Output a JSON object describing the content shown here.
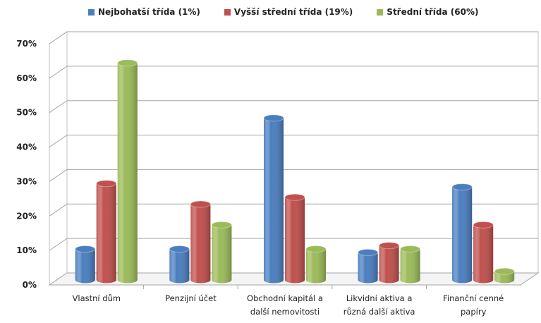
{
  "chart_data": {
    "type": "bar",
    "title": "",
    "xlabel": "",
    "ylabel": "",
    "ylim": [
      0,
      70
    ],
    "yticks": [
      "0%",
      "10%",
      "20%",
      "30%",
      "40%",
      "50%",
      "60%",
      "70%"
    ],
    "categories": [
      [
        "Vlastní dům"
      ],
      [
        "Penzijní účet"
      ],
      [
        "Obchodní kapitál a",
        "další nemovitosti"
      ],
      [
        "Likvidní aktiva a",
        "různá další aktiva"
      ],
      [
        "Finanční cenné",
        "papíry"
      ]
    ],
    "series": [
      {
        "name": "Nejbohatší třída (1%)",
        "color": "#4a7ebf",
        "values": [
          9,
          9,
          47,
          8,
          27
        ]
      },
      {
        "name": "Vyšší střední třída (19%)",
        "color": "#c0504d",
        "values": [
          28,
          22,
          24,
          10,
          16
        ]
      },
      {
        "name": "Střední třída (60%)",
        "color": "#9bbb59",
        "values": [
          63,
          16,
          9,
          9,
          2.5
        ]
      }
    ],
    "grid": true,
    "legend_position": "top",
    "style": "3d-cylinder"
  }
}
